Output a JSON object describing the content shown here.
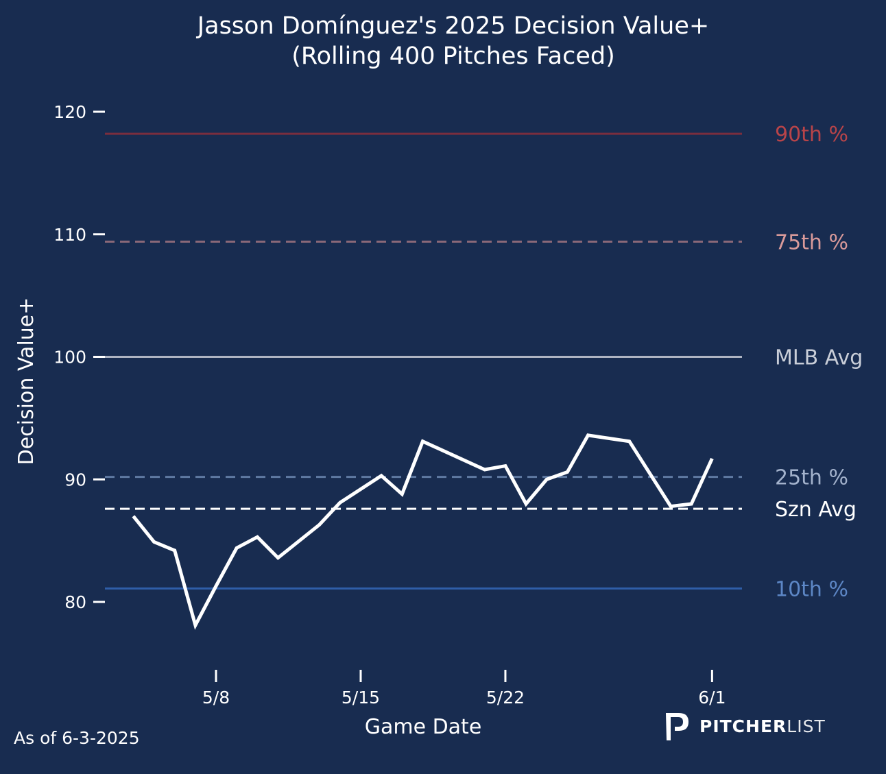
{
  "chart_data": {
    "type": "line",
    "title": "Jasson Domínguez's 2025 Decision Value+",
    "subtitle": "(Rolling 400 Pitches Faced)",
    "xlabel": "Game Date",
    "ylabel": "Decision Value+",
    "ylim": [
      74,
      124
    ],
    "yticks": [
      80,
      90,
      100,
      110,
      120
    ],
    "xticks": [
      {
        "date": "2025-05-08",
        "label": "5/8"
      },
      {
        "date": "2025-05-15",
        "label": "5/15"
      },
      {
        "date": "2025-05-22",
        "label": "5/22"
      },
      {
        "date": "2025-06-01",
        "label": "6/1"
      }
    ],
    "xlim": [
      "2025-05-02T12:00",
      "2025-06-02T12:00"
    ],
    "grid": false,
    "series": [
      {
        "name": "Decision Value+ (rolling 400)",
        "color": "#ffffff",
        "points": [
          {
            "date": "2025-05-04",
            "value": 87.0
          },
          {
            "date": "2025-05-05",
            "value": 84.9
          },
          {
            "date": "2025-05-06",
            "value": 84.2
          },
          {
            "date": "2025-05-07",
            "value": 78.1
          },
          {
            "date": "2025-05-08",
            "value": 81.3
          },
          {
            "date": "2025-05-09",
            "value": 84.4
          },
          {
            "date": "2025-05-10",
            "value": 85.3
          },
          {
            "date": "2025-05-11",
            "value": 83.6
          },
          {
            "date": "2025-05-13",
            "value": 86.3
          },
          {
            "date": "2025-05-14",
            "value": 88.1
          },
          {
            "date": "2025-05-16",
            "value": 90.3
          },
          {
            "date": "2025-05-17",
            "value": 88.8
          },
          {
            "date": "2025-05-18",
            "value": 93.1
          },
          {
            "date": "2025-05-21",
            "value": 90.8
          },
          {
            "date": "2025-05-22",
            "value": 91.1
          },
          {
            "date": "2025-05-23",
            "value": 88.0
          },
          {
            "date": "2025-05-24",
            "value": 90.0
          },
          {
            "date": "2025-05-25",
            "value": 90.6
          },
          {
            "date": "2025-05-26",
            "value": 93.6
          },
          {
            "date": "2025-05-28",
            "value": 93.1
          },
          {
            "date": "2025-05-30",
            "value": 87.8
          },
          {
            "date": "2025-05-31",
            "value": 88.0
          },
          {
            "date": "2025-06-01",
            "value": 91.7
          }
        ]
      }
    ],
    "reference_lines": [
      {
        "label": "90th %",
        "value": 118.2,
        "color": "#7a2e3e",
        "label_color": "#b84449",
        "style": "solid"
      },
      {
        "label": "75th %",
        "value": 109.4,
        "color": "#8a6878",
        "label_color": "#d99a9a",
        "style": "dashed"
      },
      {
        "label": "MLB Avg",
        "value": 100.0,
        "color": "#aeb4c2",
        "label_color": "#c9ced8",
        "style": "solid"
      },
      {
        "label": "25th %",
        "value": 90.2,
        "color": "#5f7aa2",
        "label_color": "#a3b2cc",
        "style": "dashed"
      },
      {
        "label": "Szn Avg",
        "value": 87.6,
        "color": "#ffffff",
        "label_color": "#ffffff",
        "style": "dashed"
      },
      {
        "label": "10th %",
        "value": 81.1,
        "color": "#2f5ea8",
        "label_color": "#5d87c6",
        "style": "solid"
      }
    ]
  },
  "footnote": "As of 6-3-2025",
  "logo": {
    "bold": "PITCHER",
    "light": "LIST",
    "icon": "pitcherlist-p-icon"
  },
  "colors": {
    "background": "#182c50",
    "text": "#ffffff"
  }
}
